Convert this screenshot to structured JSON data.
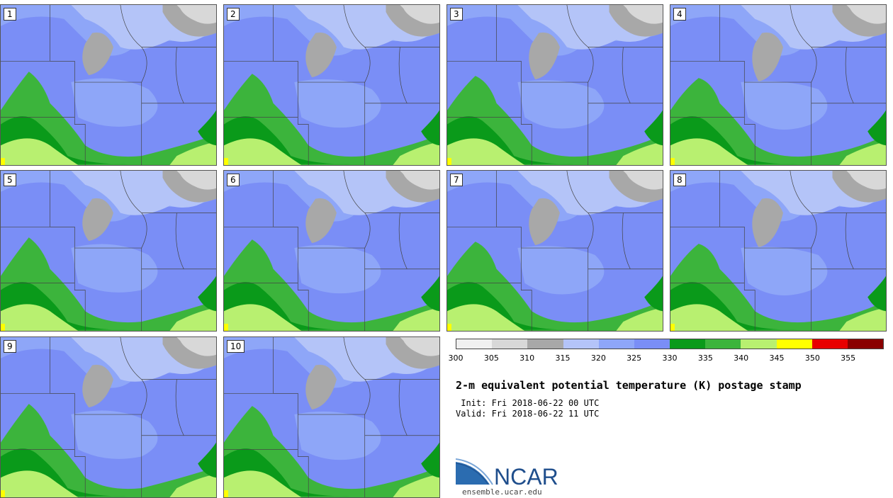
{
  "panels": [
    {
      "label": "1"
    },
    {
      "label": "2"
    },
    {
      "label": "3"
    },
    {
      "label": "4"
    },
    {
      "label": "5"
    },
    {
      "label": "6"
    },
    {
      "label": "7"
    },
    {
      "label": "8"
    },
    {
      "label": "9"
    },
    {
      "label": "10"
    }
  ],
  "colorbar": {
    "colors": [
      "#f0f0f0",
      "#d8d8d8",
      "#a8a8a8",
      "#b4c4f8",
      "#8ea6f8",
      "#7a8ef6",
      "#0a9a1a",
      "#3cb43c",
      "#b8f070",
      "#ffff00",
      "#e80000",
      "#8a0000"
    ],
    "ticks": [
      "300",
      "305",
      "310",
      "315",
      "320",
      "325",
      "330",
      "335",
      "340",
      "345",
      "350",
      "355"
    ]
  },
  "title": "2-m equivalent potential temperature (K) postage stamp",
  "init_line": " Init: Fri 2018-06-22 00 UTC",
  "valid_line": "Valid: Fri 2018-06-22 11 UTC",
  "logo_text": "NCAR",
  "url": "ensemble.ucar.edu"
}
